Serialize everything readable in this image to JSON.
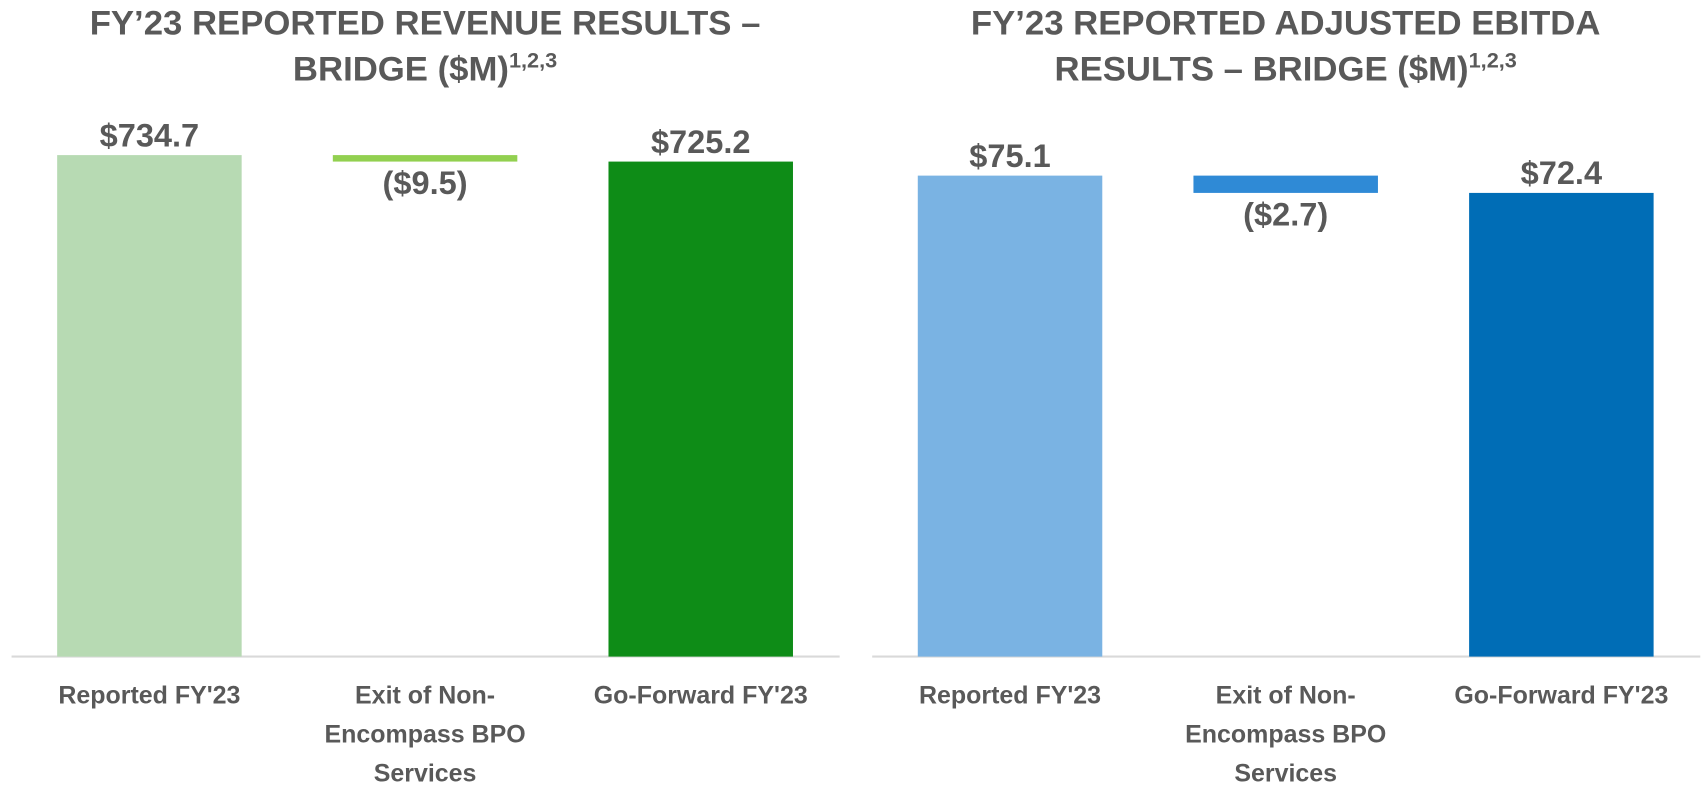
{
  "chart_data": [
    {
      "type": "waterfall",
      "title": [
        "FY’23 REPORTED REVENUE RESULTS –",
        "BRIDGE ($M)"
      ],
      "title_note": "1,2,3",
      "categories": [
        "Reported FY'23",
        "Exit of Non-Encompass BPO Services",
        "Go-Forward FY'23"
      ],
      "values": [
        734.7,
        -9.5,
        725.2
      ],
      "value_labels": [
        "$734.7",
        "($9.5)",
        "$725.2"
      ],
      "colors": [
        "#b7dab3",
        "#92d050",
        "#0e8c17"
      ],
      "ylim": [
        0,
        760
      ]
    },
    {
      "type": "waterfall",
      "title": [
        "FY’23 REPORTED ADJUSTED EBITDA",
        "RESULTS – BRIDGE ($M)"
      ],
      "title_note": "1,2,3",
      "categories": [
        "Reported FY'23",
        "Exit of Non-Encompass BPO Services",
        "Go-Forward FY'23"
      ],
      "values": [
        75.1,
        -2.7,
        72.4
      ],
      "value_labels": [
        "$75.1",
        "($2.7)",
        "$72.4"
      ],
      "colors": [
        "#7ab3e3",
        "#2f8ad6",
        "#006db6"
      ],
      "ylim": [
        0,
        81
      ]
    }
  ]
}
